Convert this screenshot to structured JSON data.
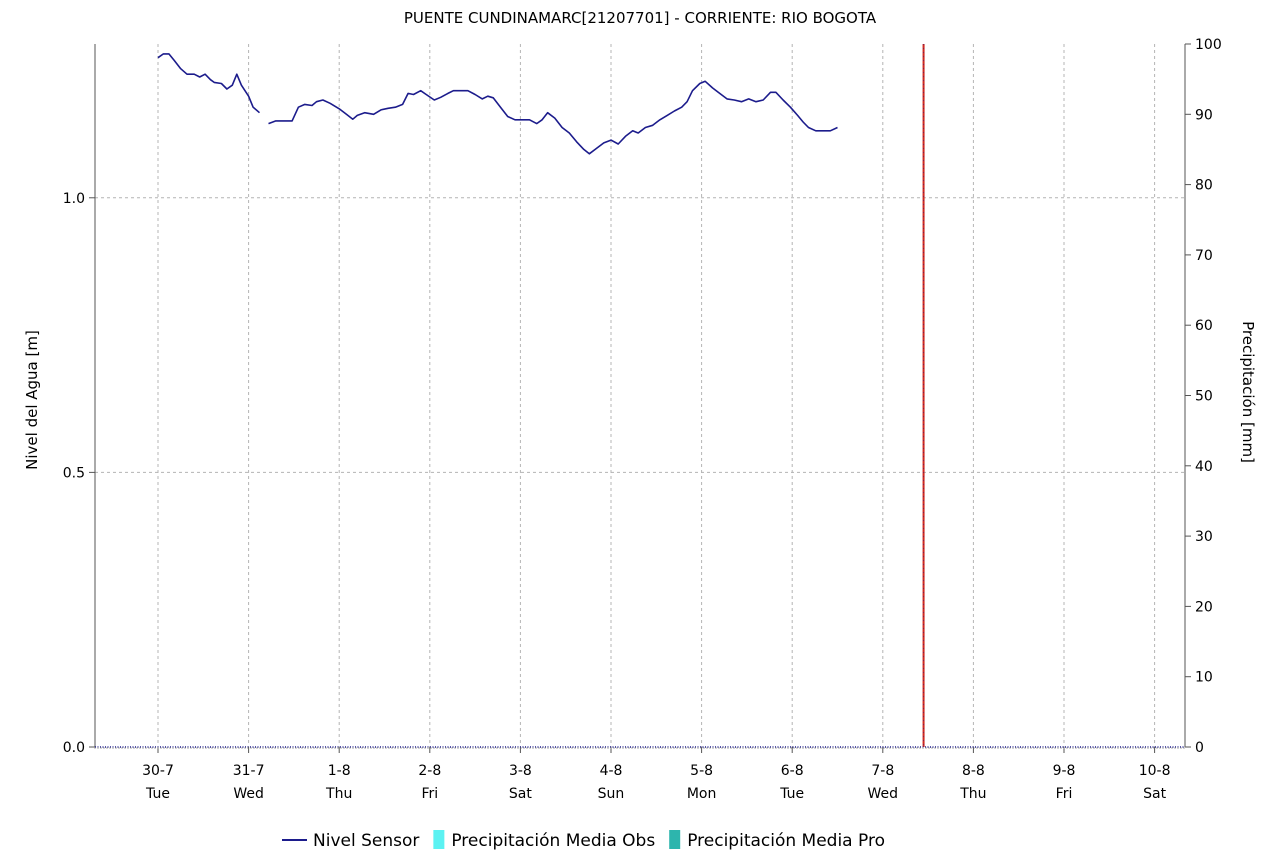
{
  "chart_data": {
    "type": "line",
    "title": "PUENTE CUNDINAMARC[21207701] - CORRIENTE: RIO BOGOTA",
    "ylabel": "Nivel del Agua [m]",
    "y2label": "Precipitación [mm]",
    "ylim": [
      0.0,
      1.28
    ],
    "y2lim": [
      0,
      100
    ],
    "y_ticks": [
      "0.0",
      "0.5",
      "1.0"
    ],
    "y2_ticks": [
      "0",
      "10",
      "20",
      "30",
      "40",
      "50",
      "60",
      "70",
      "80",
      "90",
      "100"
    ],
    "grid": true,
    "legend_position": "bottom",
    "x_ticks": [
      {
        "date": "30-7",
        "day": "Tue"
      },
      {
        "date": "31-7",
        "day": "Wed"
      },
      {
        "date": "1-8",
        "day": "Thu"
      },
      {
        "date": "2-8",
        "day": "Fri"
      },
      {
        "date": "3-8",
        "day": "Sat"
      },
      {
        "date": "4-8",
        "day": "Sun"
      },
      {
        "date": "5-8",
        "day": "Mon"
      },
      {
        "date": "6-8",
        "day": "Tue"
      },
      {
        "date": "7-8",
        "day": "Wed"
      },
      {
        "date": "8-8",
        "day": "Thu"
      },
      {
        "date": "9-8",
        "day": "Fri"
      },
      {
        "date": "10-8",
        "day": "Sat"
      }
    ],
    "current_time_marker": {
      "day": 8.45,
      "color": "#d0281e"
    },
    "series": [
      {
        "name": "Nivel Sensor",
        "color": "#1c1c8c",
        "kind": "line",
        "segments": [
          [
            [
              0.0,
              1.255
            ],
            [
              0.06,
              1.262
            ],
            [
              0.12,
              1.262
            ],
            [
              0.18,
              1.25
            ],
            [
              0.25,
              1.235
            ],
            [
              0.32,
              1.225
            ],
            [
              0.4,
              1.225
            ],
            [
              0.46,
              1.22
            ],
            [
              0.52,
              1.225
            ],
            [
              0.58,
              1.215
            ],
            [
              0.62,
              1.21
            ],
            [
              0.7,
              1.208
            ],
            [
              0.76,
              1.198
            ],
            [
              0.82,
              1.205
            ],
            [
              0.87,
              1.225
            ],
            [
              0.92,
              1.205
            ],
            [
              1.0,
              1.185
            ],
            [
              1.05,
              1.165
            ],
            [
              1.12,
              1.155
            ]
          ],
          [
            [
              1.22,
              1.135
            ],
            [
              1.3,
              1.14
            ],
            [
              1.4,
              1.14
            ],
            [
              1.48,
              1.14
            ],
            [
              1.55,
              1.165
            ],
            [
              1.62,
              1.17
            ],
            [
              1.7,
              1.168
            ],
            [
              1.75,
              1.175
            ],
            [
              1.82,
              1.178
            ],
            [
              1.9,
              1.172
            ],
            [
              2.0,
              1.162
            ],
            [
              2.08,
              1.152
            ],
            [
              2.15,
              1.143
            ],
            [
              2.2,
              1.15
            ],
            [
              2.28,
              1.155
            ],
            [
              2.38,
              1.152
            ],
            [
              2.46,
              1.16
            ],
            [
              2.54,
              1.163
            ],
            [
              2.62,
              1.165
            ],
            [
              2.7,
              1.17
            ],
            [
              2.76,
              1.19
            ],
            [
              2.82,
              1.188
            ],
            [
              2.9,
              1.195
            ],
            [
              2.96,
              1.188
            ],
            [
              3.05,
              1.178
            ],
            [
              3.12,
              1.183
            ],
            [
              3.2,
              1.19
            ],
            [
              3.26,
              1.195
            ],
            [
              3.34,
              1.195
            ],
            [
              3.42,
              1.195
            ],
            [
              3.5,
              1.188
            ],
            [
              3.58,
              1.18
            ],
            [
              3.64,
              1.185
            ],
            [
              3.7,
              1.182
            ],
            [
              3.78,
              1.165
            ],
            [
              3.86,
              1.148
            ],
            [
              3.94,
              1.142
            ],
            [
              4.02,
              1.142
            ],
            [
              4.1,
              1.142
            ],
            [
              4.18,
              1.135
            ],
            [
              4.24,
              1.142
            ],
            [
              4.3,
              1.155
            ],
            [
              4.38,
              1.145
            ],
            [
              4.46,
              1.128
            ],
            [
              4.54,
              1.118
            ],
            [
              4.62,
              1.102
            ],
            [
              4.7,
              1.088
            ],
            [
              4.76,
              1.08
            ],
            [
              4.84,
              1.09
            ],
            [
              4.92,
              1.1
            ],
            [
              5.0,
              1.105
            ],
            [
              5.08,
              1.098
            ],
            [
              5.16,
              1.112
            ],
            [
              5.24,
              1.122
            ],
            [
              5.3,
              1.118
            ],
            [
              5.38,
              1.128
            ],
            [
              5.46,
              1.132
            ],
            [
              5.54,
              1.142
            ],
            [
              5.62,
              1.15
            ],
            [
              5.7,
              1.158
            ],
            [
              5.78,
              1.165
            ],
            [
              5.84,
              1.175
            ],
            [
              5.9,
              1.195
            ],
            [
              5.98,
              1.208
            ],
            [
              6.04,
              1.212
            ],
            [
              6.12,
              1.2
            ],
            [
              6.2,
              1.19
            ],
            [
              6.28,
              1.18
            ],
            [
              6.36,
              1.178
            ],
            [
              6.44,
              1.175
            ],
            [
              6.52,
              1.18
            ],
            [
              6.6,
              1.175
            ],
            [
              6.68,
              1.178
            ],
            [
              6.76,
              1.192
            ],
            [
              6.82,
              1.192
            ],
            [
              6.9,
              1.178
            ],
            [
              6.98,
              1.165
            ],
            [
              7.06,
              1.15
            ],
            [
              7.12,
              1.138
            ],
            [
              7.18,
              1.128
            ],
            [
              7.26,
              1.122
            ],
            [
              7.34,
              1.122
            ],
            [
              7.42,
              1.122
            ],
            [
              7.5,
              1.128
            ]
          ]
        ]
      },
      {
        "name": "Precipitación Media Obs",
        "color": "#5cf2f2",
        "kind": "bar",
        "values": []
      },
      {
        "name": "Precipitación Media Pro",
        "color": "#2db5ad",
        "kind": "bar",
        "values": []
      }
    ]
  }
}
